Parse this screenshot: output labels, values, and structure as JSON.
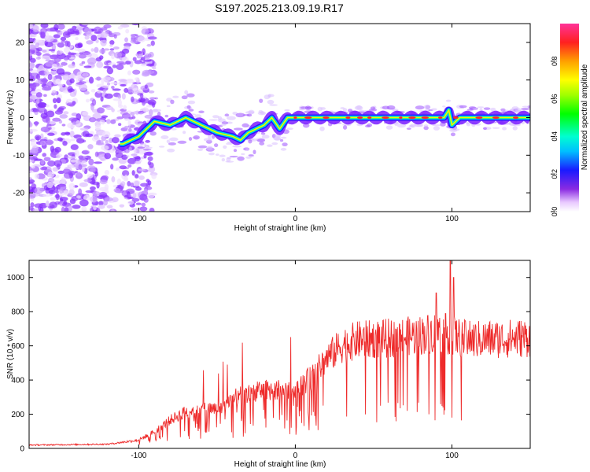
{
  "title": "S197.2025.213.09.19.R17",
  "colors": {
    "snr_line": "#ee2a2a",
    "frame": "#000000"
  },
  "chart_data": [
    {
      "type": "heatmap",
      "name": "spectrogram",
      "xlabel": "Height of straight line (km)",
      "ylabel": "Frequency (Hz)",
      "xlim": [
        -170,
        150
      ],
      "ylim": [
        -25,
        25
      ],
      "x_ticks": [
        -100,
        0,
        100
      ],
      "y_ticks": [
        -20,
        -10,
        0,
        10,
        20
      ],
      "colorbar": {
        "label": "Normalized spectral amplitude",
        "range": [
          0,
          1
        ],
        "ticks": [
          0.0,
          0.2,
          0.4,
          0.6,
          0.8
        ]
      },
      "ridge": [
        {
          "x": -110,
          "f": -7
        },
        {
          "x": -100,
          "f": -5
        },
        {
          "x": -90,
          "f": -1
        },
        {
          "x": -80,
          "f": -2
        },
        {
          "x": -70,
          "f": 0
        },
        {
          "x": -60,
          "f": -2
        },
        {
          "x": -50,
          "f": -4
        },
        {
          "x": -40,
          "f": -5
        },
        {
          "x": -35,
          "f": -6
        },
        {
          "x": -30,
          "f": -4
        },
        {
          "x": -20,
          "f": -2
        },
        {
          "x": -15,
          "f": 0
        },
        {
          "x": -10,
          "f": -3
        },
        {
          "x": -5,
          "f": 0
        },
        {
          "x": 0,
          "f": 0
        },
        {
          "x": 95,
          "f": 0
        },
        {
          "x": 98,
          "f": 2
        },
        {
          "x": 100,
          "f": -2
        },
        {
          "x": 105,
          "f": 0
        },
        {
          "x": 150,
          "f": 0
        }
      ]
    },
    {
      "type": "line",
      "name": "snr",
      "xlabel": "Height of straight line (km)",
      "ylabel": "SNR (10 * v/v)",
      "xlim": [
        -170,
        150
      ],
      "ylim": [
        0,
        1100
      ],
      "x_ticks": [
        -100,
        0,
        100
      ],
      "y_ticks": [
        0,
        200,
        400,
        600,
        800,
        1000
      ],
      "envelope": [
        {
          "x": -170,
          "y": 20
        },
        {
          "x": -120,
          "y": 25
        },
        {
          "x": -100,
          "y": 50
        },
        {
          "x": -90,
          "y": 100
        },
        {
          "x": -80,
          "y": 170
        },
        {
          "x": -70,
          "y": 220
        },
        {
          "x": -60,
          "y": 240
        },
        {
          "x": -50,
          "y": 230
        },
        {
          "x": -40,
          "y": 300
        },
        {
          "x": -30,
          "y": 330
        },
        {
          "x": -20,
          "y": 350
        },
        {
          "x": -10,
          "y": 350
        },
        {
          "x": 0,
          "y": 360
        },
        {
          "x": 10,
          "y": 420
        },
        {
          "x": 20,
          "y": 540
        },
        {
          "x": 30,
          "y": 620
        },
        {
          "x": 40,
          "y": 650
        },
        {
          "x": 60,
          "y": 660
        },
        {
          "x": 80,
          "y": 680
        },
        {
          "x": 90,
          "y": 700
        },
        {
          "x": 100,
          "y": 680
        },
        {
          "x": 110,
          "y": 650
        },
        {
          "x": 150,
          "y": 665
        }
      ],
      "peaks": [
        {
          "x": 90,
          "y": 910
        },
        {
          "x": 99,
          "y": 1100
        },
        {
          "x": 101,
          "y": 1000
        }
      ]
    }
  ]
}
